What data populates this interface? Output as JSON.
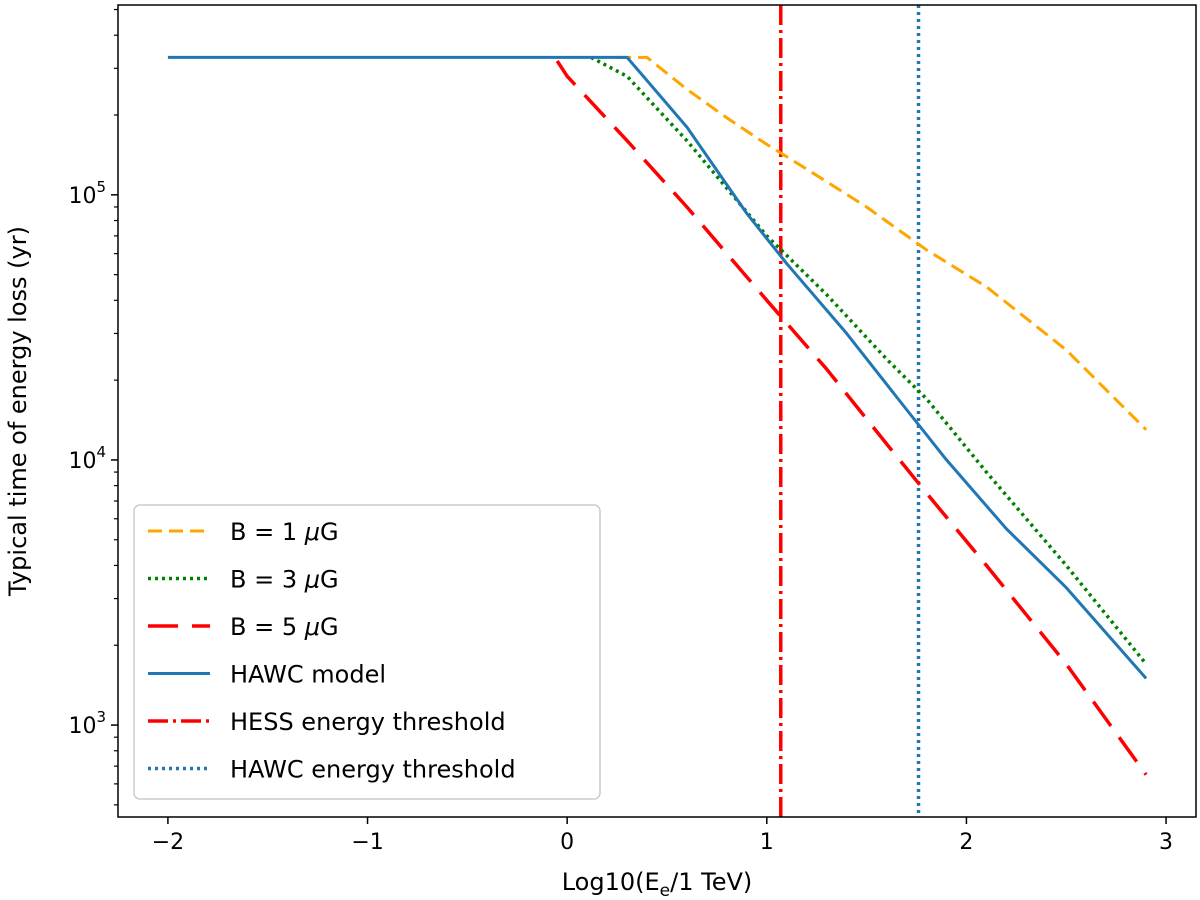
{
  "chart_data": {
    "type": "line",
    "xlabel": "Log10(E",
    "xlabel_sub": "e",
    "xlabel_tail": "/1 TeV)",
    "ylabel": "Typical time of energy loss (yr)",
    "yscale": "log",
    "xlim": [
      -2.25,
      3.15
    ],
    "ylim": [
      450,
      520000
    ],
    "x_ticks": [
      {
        "value": -2,
        "label": "−2"
      },
      {
        "value": -1,
        "label": "−1"
      },
      {
        "value": 0,
        "label": "0"
      },
      {
        "value": 1,
        "label": "1"
      },
      {
        "value": 2,
        "label": "2"
      },
      {
        "value": 3,
        "label": "3"
      }
    ],
    "y_ticks": [
      {
        "value": 1000,
        "base": "10",
        "exp": "3"
      },
      {
        "value": 10000,
        "base": "10",
        "exp": "4"
      },
      {
        "value": 100000,
        "base": "10",
        "exp": "5"
      }
    ],
    "series": [
      {
        "name": "B = 1 μG",
        "label_main": "B = 1 ",
        "label_mu": "μ",
        "label_tail": "G",
        "color": "#ffa500",
        "dash": "14 7",
        "width": 3,
        "x": [
          0.25,
          0.4,
          0.6,
          0.8,
          1.0,
          1.2,
          1.5,
          1.8,
          2.1,
          2.5,
          2.9
        ],
        "y": [
          330000,
          330000,
          250000,
          195000,
          155000,
          125000,
          90000,
          62000,
          45000,
          26000,
          13000
        ]
      },
      {
        "name": "B = 3 μG",
        "label_main": "B = 3 ",
        "label_mu": "μ",
        "label_tail": "G",
        "color": "#008000",
        "dash": "3 4",
        "width": 3.5,
        "x": [
          0.12,
          0.3,
          0.6,
          1.0,
          1.3,
          1.6,
          1.8,
          2.1,
          2.5,
          2.9
        ],
        "y": [
          330000,
          280000,
          160000,
          70000,
          42000,
          24000,
          17000,
          9000,
          4000,
          1700
        ]
      },
      {
        "name": "B = 5 μG",
        "label_main": "B = 5 ",
        "label_mu": "μ",
        "label_tail": "G",
        "color": "#ff0000",
        "dash": "30 14",
        "width": 3.5,
        "x": [
          -0.05,
          0.0,
          0.3,
          0.6,
          1.0,
          1.3,
          1.6,
          1.8,
          2.1,
          2.5,
          2.9
        ],
        "y": [
          320000,
          280000,
          160000,
          90000,
          40000,
          22000,
          11500,
          7500,
          4000,
          1700,
          650
        ]
      },
      {
        "name": "HAWC model",
        "label_main": "HAWC model",
        "label_mu": "",
        "label_tail": "",
        "color": "#1f77b4",
        "dash": "",
        "width": 3,
        "x": [
          -2.0,
          0.15,
          0.3,
          0.6,
          0.9,
          1.1,
          1.4,
          1.7,
          1.9,
          2.2,
          2.5,
          2.9
        ],
        "y": [
          330000,
          330000,
          330000,
          180000,
          85000,
          55000,
          30000,
          15500,
          10000,
          5500,
          3300,
          1500
        ]
      }
    ],
    "vlines": [
      {
        "name": "HESS energy threshold",
        "x": 1.07,
        "color": "#ff0000",
        "dash": "20 5 3 5",
        "width": 3.5
      },
      {
        "name": "HAWC energy threshold",
        "x": 1.76,
        "color": "#1f77b4",
        "dash": "3 4",
        "width": 3.5
      }
    ],
    "legend_position": "lower-left"
  }
}
